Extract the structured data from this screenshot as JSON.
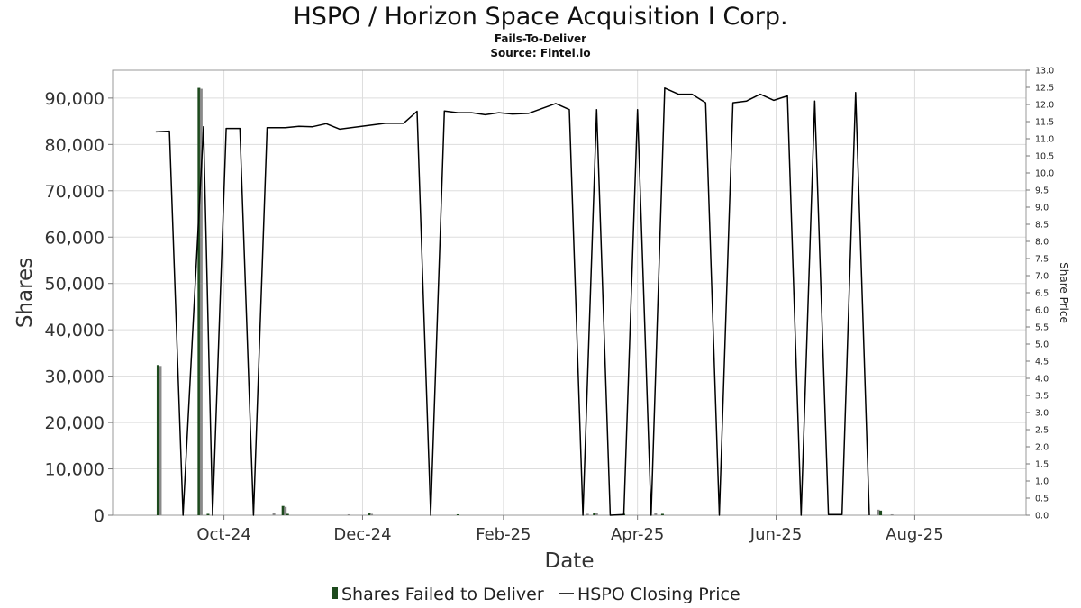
{
  "title": "HSPO / Horizon Space Acquisition I Corp.",
  "subtitle": "Fails-To-Deliver",
  "source": "Source: Fintel.io",
  "colors": {
    "bar_primary": "#1d4a1d",
    "bar_secondary": "#8a8a8a",
    "price_line": "#000000",
    "grid": "#dddddd"
  },
  "chart_data": {
    "type": "bar",
    "xlabel": "Date",
    "ylabel": "Shares",
    "y2label": "Share Price",
    "ylim": [
      0,
      96000
    ],
    "y2lim": [
      0,
      13
    ],
    "yticks": [
      "0",
      "10,000",
      "20,000",
      "30,000",
      "40,000",
      "50,000",
      "60,000",
      "70,000",
      "80,000",
      "90,000"
    ],
    "yticks_values": [
      0,
      10000,
      20000,
      30000,
      40000,
      50000,
      60000,
      70000,
      80000,
      90000
    ],
    "y2ticks": [
      "0.0",
      "0.5",
      "1.0",
      "1.5",
      "2.0",
      "2.5",
      "3.0",
      "3.5",
      "4.0",
      "4.5",
      "5.0",
      "5.5",
      "6.0",
      "6.5",
      "7.0",
      "7.5",
      "8.0",
      "8.5",
      "9.0",
      "9.5",
      "10.0",
      "10.5",
      "11.0",
      "11.5",
      "12.0",
      "12.5",
      "13.0"
    ],
    "xrange": [
      "2024-08-13",
      "2025-09-19"
    ],
    "xticks": [
      {
        "date": "2024-10-01",
        "label": "Oct-24"
      },
      {
        "date": "2024-12-01",
        "label": "Dec-24"
      },
      {
        "date": "2025-02-01",
        "label": "Feb-25"
      },
      {
        "date": "2025-04-01",
        "label": "Apr-25"
      },
      {
        "date": "2025-06-01",
        "label": "Jun-25"
      },
      {
        "date": "2025-08-01",
        "label": "Aug-25"
      }
    ],
    "grid": true,
    "legend_position": "bottom",
    "series": [
      {
        "name": "Shares Failed to Deliver",
        "axis": "left",
        "kind": "bar",
        "points": [
          {
            "date": "2024-09-02",
            "value": 32400
          },
          {
            "date": "2024-09-03",
            "value": 32200
          },
          {
            "date": "2024-09-20",
            "value": 92200
          },
          {
            "date": "2024-09-21",
            "value": 92000
          },
          {
            "date": "2024-09-24",
            "value": 300
          },
          {
            "date": "2024-10-23",
            "value": 400
          },
          {
            "date": "2024-10-27",
            "value": 2000
          },
          {
            "date": "2024-10-28",
            "value": 1800
          },
          {
            "date": "2024-10-29",
            "value": 300
          },
          {
            "date": "2024-11-25",
            "value": 200
          },
          {
            "date": "2024-12-04",
            "value": 400
          },
          {
            "date": "2024-12-05",
            "value": 300
          },
          {
            "date": "2025-01-12",
            "value": 200
          },
          {
            "date": "2025-03-10",
            "value": 300
          },
          {
            "date": "2025-03-13",
            "value": 500
          },
          {
            "date": "2025-03-14",
            "value": 400
          },
          {
            "date": "2025-03-26",
            "value": 300
          },
          {
            "date": "2025-04-09",
            "value": 400
          },
          {
            "date": "2025-04-12",
            "value": 300
          },
          {
            "date": "2025-07-16",
            "value": 1200
          },
          {
            "date": "2025-07-17",
            "value": 1000
          },
          {
            "date": "2025-07-22",
            "value": 200
          }
        ]
      },
      {
        "name": "HSPO Closing Price",
        "axis": "right",
        "kind": "line",
        "points": [
          {
            "date": "2024-09-01",
            "value": 11.2
          },
          {
            "date": "2024-09-07",
            "value": 11.22
          },
          {
            "date": "2024-09-13",
            "value": 0
          },
          {
            "date": "2024-09-22",
            "value": 11.35
          },
          {
            "date": "2024-09-26",
            "value": 0
          },
          {
            "date": "2024-10-02",
            "value": 11.3
          },
          {
            "date": "2024-10-08",
            "value": 11.3
          },
          {
            "date": "2024-10-14",
            "value": 0
          },
          {
            "date": "2024-10-20",
            "value": 11.32
          },
          {
            "date": "2024-10-28",
            "value": 11.32
          },
          {
            "date": "2024-11-03",
            "value": 11.36
          },
          {
            "date": "2024-11-09",
            "value": 11.35
          },
          {
            "date": "2024-11-15",
            "value": 11.44
          },
          {
            "date": "2024-11-21",
            "value": 11.28
          },
          {
            "date": "2024-12-11",
            "value": 11.45
          },
          {
            "date": "2024-12-19",
            "value": 11.45
          },
          {
            "date": "2024-12-25",
            "value": 11.8
          },
          {
            "date": "2024-12-31",
            "value": 0
          },
          {
            "date": "2025-01-06",
            "value": 11.81
          },
          {
            "date": "2025-01-12",
            "value": 11.76
          },
          {
            "date": "2025-01-18",
            "value": 11.76
          },
          {
            "date": "2025-01-24",
            "value": 11.7
          },
          {
            "date": "2025-01-30",
            "value": 11.76
          },
          {
            "date": "2025-02-05",
            "value": 11.72
          },
          {
            "date": "2025-02-12",
            "value": 11.74
          },
          {
            "date": "2025-02-24",
            "value": 12.03
          },
          {
            "date": "2025-03-02",
            "value": 11.85
          },
          {
            "date": "2025-03-08",
            "value": 0
          },
          {
            "date": "2025-03-14",
            "value": 11.85
          },
          {
            "date": "2025-03-20",
            "value": 0
          },
          {
            "date": "2025-03-26",
            "value": 0.02
          },
          {
            "date": "2025-04-01",
            "value": 11.85
          },
          {
            "date": "2025-04-07",
            "value": 0
          },
          {
            "date": "2025-04-13",
            "value": 12.48
          },
          {
            "date": "2025-04-19",
            "value": 12.3
          },
          {
            "date": "2025-04-25",
            "value": 12.3
          },
          {
            "date": "2025-05-01",
            "value": 12.05
          },
          {
            "date": "2025-05-07",
            "value": 0
          },
          {
            "date": "2025-05-13",
            "value": 12.05
          },
          {
            "date": "2025-05-19",
            "value": 12.1
          },
          {
            "date": "2025-05-25",
            "value": 12.3
          },
          {
            "date": "2025-05-31",
            "value": 12.12
          },
          {
            "date": "2025-06-06",
            "value": 12.25
          },
          {
            "date": "2025-06-12",
            "value": 0
          },
          {
            "date": "2025-06-18",
            "value": 12.1
          },
          {
            "date": "2025-06-24",
            "value": 0.02
          },
          {
            "date": "2025-06-30",
            "value": 0.02
          },
          {
            "date": "2025-07-06",
            "value": 12.35
          },
          {
            "date": "2025-07-12",
            "value": 0
          }
        ]
      }
    ]
  }
}
